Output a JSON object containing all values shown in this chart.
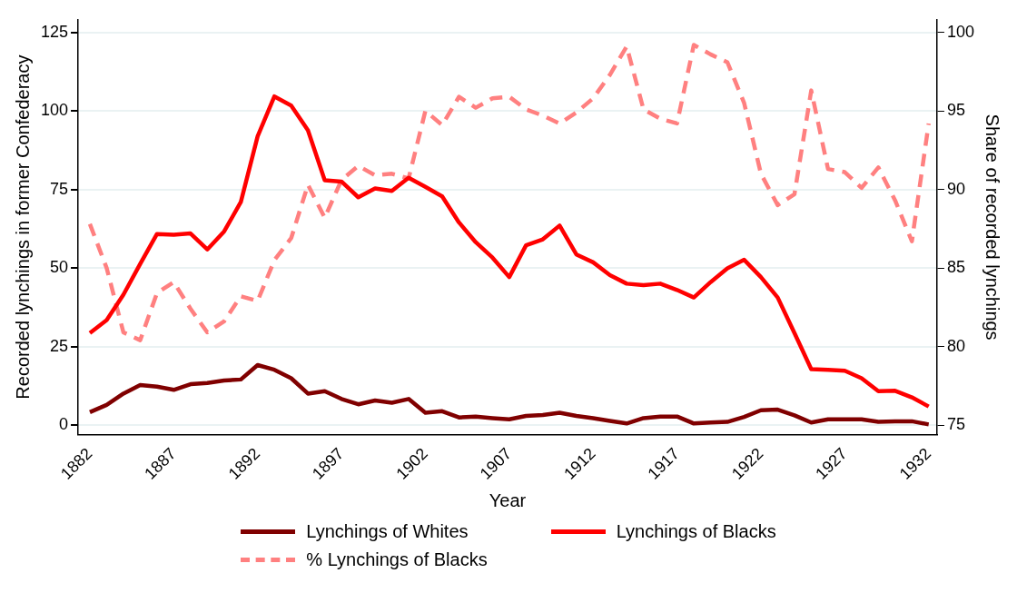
{
  "chart_data": {
    "type": "line",
    "xlabel": "Year",
    "ylabel": "Recorded lynchings in former Confederacy",
    "y2label": "Share of recorded lynchings",
    "x": [
      1882,
      1883,
      1884,
      1885,
      1886,
      1887,
      1888,
      1889,
      1890,
      1891,
      1892,
      1893,
      1894,
      1895,
      1896,
      1897,
      1898,
      1899,
      1900,
      1901,
      1902,
      1903,
      1904,
      1905,
      1906,
      1907,
      1908,
      1909,
      1910,
      1911,
      1912,
      1913,
      1914,
      1915,
      1916,
      1917,
      1918,
      1919,
      1920,
      1921,
      1922,
      1923,
      1924,
      1925,
      1926,
      1927,
      1928,
      1929,
      1930,
      1931,
      1932
    ],
    "series": [
      {
        "name": "Lynchings of Whites",
        "color": "#800000",
        "values": [
          4.1,
          6.4,
          10,
          12.7,
          12.2,
          11.2,
          13,
          13.4,
          14.2,
          14.5,
          19.1,
          17.6,
          14.9,
          10,
          10.8,
          8.3,
          6.6,
          7.8,
          7.1,
          8.3,
          3.9,
          4.4,
          2.4,
          2.7,
          2.2,
          1.8,
          2.9,
          3.2,
          3.9,
          2.9,
          2.2,
          1.3,
          0.5,
          2.2,
          2.7,
          2.7,
          0.5,
          0.8,
          1,
          2.6,
          4.7,
          4.9,
          3.1,
          0.8,
          1.8,
          1.8,
          1.8,
          1,
          1.2,
          1.2,
          0.2
        ]
      },
      {
        "name": "Lynchings of Blacks",
        "color": "#ff0000",
        "values": [
          29.3,
          33.4,
          41.5,
          51.3,
          60.8,
          60.6,
          61,
          55.9,
          61.6,
          71,
          91.9,
          104.6,
          101.7,
          93.8,
          77.9,
          77.5,
          72.5,
          75.3,
          74.5,
          78.7,
          75.8,
          72.8,
          64.5,
          58.2,
          53.3,
          47.1,
          57.2,
          59.1,
          63.5,
          54.3,
          51.8,
          47.7,
          45,
          44.5,
          45,
          43,
          40.6,
          45.5,
          49.9,
          52.6,
          47.1,
          40.6,
          29.3,
          17.8,
          17.6,
          17.3,
          14.9,
          10.8,
          10.9,
          8.8,
          5.9
        ]
      },
      {
        "name": "% Lynchings of Blacks",
        "color": "#ff8080",
        "axis": "y2",
        "line_style": "dashed",
        "values": [
          87.8,
          85,
          80.9,
          80.4,
          83.4,
          84.1,
          82.4,
          80.9,
          81.6,
          83.2,
          82.9,
          85.5,
          86.9,
          90.3,
          88.2,
          90.6,
          91.5,
          90.9,
          91,
          90.7,
          95,
          94.1,
          95.9,
          95.2,
          95.8,
          95.9,
          95.1,
          94.7,
          94.2,
          94.9,
          95.8,
          97.3,
          99.1,
          95.1,
          94.5,
          94.2,
          99.2,
          98.6,
          98.1,
          95.5,
          91,
          89,
          89.7,
          96.3,
          91.3,
          91.1,
          90.1,
          91.4,
          89.3,
          86.7,
          94.2
        ]
      }
    ],
    "xlim": [
      1881.3,
      1932.5
    ],
    "xticks": [
      1882,
      1887,
      1892,
      1897,
      1902,
      1907,
      1912,
      1917,
      1922,
      1927,
      1932
    ],
    "ylim": [
      -3,
      129
    ],
    "yticks": [
      0,
      25,
      50,
      75,
      100,
      125
    ],
    "y2lim": [
      74.4,
      100.8
    ],
    "y2ticks": [
      75,
      80,
      85,
      90,
      95,
      100
    ],
    "grid": "y",
    "legend": "bottom",
    "line_style": "solid",
    "marker": "none"
  }
}
